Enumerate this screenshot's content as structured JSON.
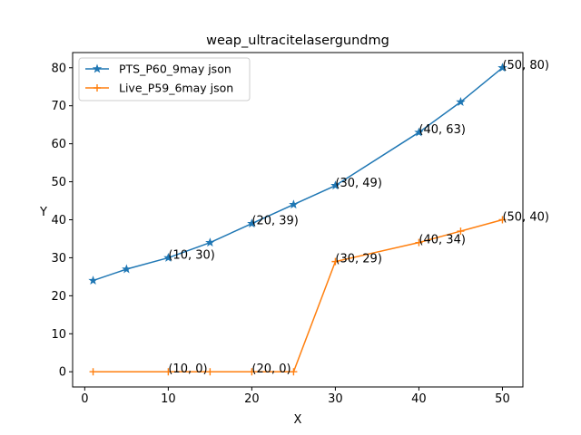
{
  "chart_data": {
    "type": "line",
    "title": "weap_ultracitelasergundmg",
    "xlabel": "X",
    "ylabel": "Y",
    "xlim": [
      -1.45,
      52.45
    ],
    "ylim": [
      -4,
      84
    ],
    "xticks": [
      0,
      10,
      20,
      30,
      40,
      50
    ],
    "yticks": [
      0,
      10,
      20,
      30,
      40,
      50,
      60,
      70,
      80
    ],
    "grid": false,
    "legend_position": "top-left",
    "series": [
      {
        "name": "PTS_P60_9may json",
        "color": "#1f77b4",
        "marker": "star",
        "x": [
          1,
          5,
          10,
          15,
          20,
          25,
          30,
          40,
          45,
          50
        ],
        "y": [
          24,
          27,
          30,
          34,
          39,
          44,
          49,
          63,
          71,
          80
        ]
      },
      {
        "name": "Live_P59_6may json",
        "color": "#ff7f0e",
        "marker": "plus",
        "x": [
          1,
          10,
          15,
          20,
          25,
          30,
          40,
          45,
          50
        ],
        "y": [
          0,
          0,
          0,
          0,
          0,
          29,
          34,
          37,
          40
        ]
      }
    ],
    "annotations": [
      {
        "text": "(10, 30)",
        "x": 10,
        "y": 30
      },
      {
        "text": "(20, 39)",
        "x": 20,
        "y": 39
      },
      {
        "text": "(30, 49)",
        "x": 30,
        "y": 49
      },
      {
        "text": "(40, 63)",
        "x": 40,
        "y": 63
      },
      {
        "text": "(50, 80)",
        "x": 50,
        "y": 80
      },
      {
        "text": "(10, 0)",
        "x": 10,
        "y": 0
      },
      {
        "text": "(20, 0)",
        "x": 20,
        "y": 0
      },
      {
        "text": "(30, 29)",
        "x": 30,
        "y": 29
      },
      {
        "text": "(40, 34)",
        "x": 40,
        "y": 34
      },
      {
        "text": "(50, 40)",
        "x": 50,
        "y": 40
      }
    ]
  }
}
